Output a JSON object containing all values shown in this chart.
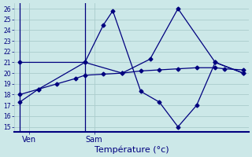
{
  "title": "Température (°c)",
  "background_color": "#cce8e8",
  "plot_bg_color": "#cce8e8",
  "line_color": "#00007f",
  "grid_color": "#aacccc",
  "axis_color": "#00007f",
  "ylim": [
    14.5,
    26.5
  ],
  "yticks": [
    15,
    16,
    17,
    18,
    19,
    20,
    21,
    22,
    23,
    24,
    25,
    26
  ],
  "xlim": [
    -0.3,
    12.3
  ],
  "xtick_labels": [
    "Ven",
    "Sam"
  ],
  "xtick_positions": [
    0.5,
    4.0
  ],
  "vline_positions": [
    0.0,
    3.5
  ],
  "line1_x": [
    0,
    1,
    3.5,
    4.5,
    5.0,
    6.5,
    7.5,
    8.5,
    9.5,
    10.5,
    12.0
  ],
  "line1_y": [
    17.3,
    18.5,
    21.0,
    24.5,
    25.8,
    18.3,
    17.3,
    15.0,
    17.0,
    21.0,
    20.0
  ],
  "line2_x": [
    0,
    3.5,
    5.5,
    7.0,
    8.5,
    10.5,
    12.0
  ],
  "line2_y": [
    21.0,
    21.0,
    20.0,
    21.3,
    26.0,
    21.0,
    20.0
  ],
  "line3_x": [
    0,
    1,
    2,
    3,
    3.5,
    4.5,
    5.5,
    6.5,
    7.5,
    8.5,
    9.5,
    10.5,
    11.0,
    12.0
  ],
  "line3_y": [
    18.0,
    18.5,
    19.0,
    19.5,
    19.8,
    19.9,
    20.0,
    20.2,
    20.3,
    20.4,
    20.5,
    20.5,
    20.4,
    20.3
  ]
}
